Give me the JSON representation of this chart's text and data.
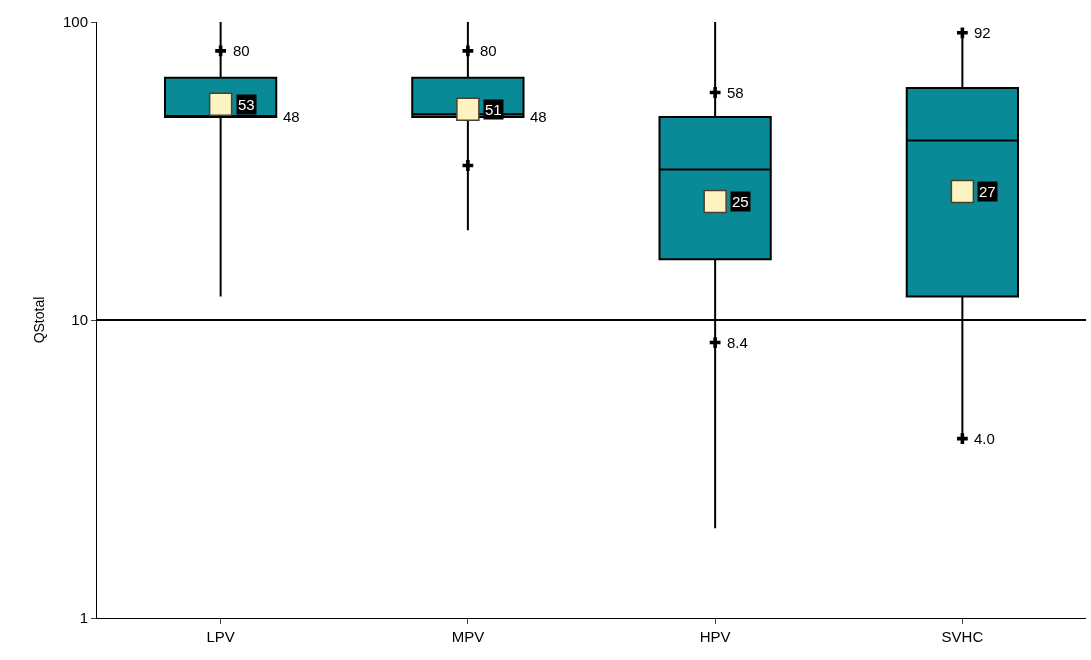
{
  "chart_data": {
    "type": "box",
    "ylabel": "QStotal",
    "categories": [
      "LPV",
      "MPV",
      "HPV",
      "SVHC"
    ],
    "log": true,
    "ylim": [
      1,
      100
    ],
    "yticks": [
      1,
      10,
      100
    ],
    "grid": "y",
    "color": "#0a8a96",
    "boxes": [
      {
        "low": 12,
        "q1": 48,
        "median": 48,
        "q3": 65,
        "high": 100
      },
      {
        "low": 20,
        "q1": 48,
        "median": 49,
        "q3": 65,
        "high": 100
      },
      {
        "low": 2,
        "q1": 16,
        "median": 32,
        "q3": 48,
        "high": 100
      },
      {
        "low": 4,
        "q1": 12,
        "median": 40,
        "q3": 60,
        "high": 94
      }
    ],
    "series": [
      {
        "type": "scatter",
        "marker": "square",
        "color": "#fdf3c0",
        "x": [
          "LPV",
          "MPV",
          "HPV",
          "SVHC"
        ],
        "values": [
          53,
          51,
          25,
          27
        ],
        "value_labels": [
          "53",
          "51",
          "25",
          "27"
        ]
      },
      {
        "type": "scatter",
        "marker": "cross",
        "color": "#000000",
        "x": [
          "LPV",
          "MPV",
          "MPV",
          "HPV",
          "HPV",
          "SVHC",
          "SVHC"
        ],
        "values": [
          80,
          80,
          33,
          58,
          8.4,
          92,
          4.0
        ],
        "value_labels": [
          "80",
          "80",
          null,
          "58",
          "8.4",
          "92",
          "4.0"
        ]
      }
    ],
    "annotations": [
      "48",
      "48"
    ]
  }
}
